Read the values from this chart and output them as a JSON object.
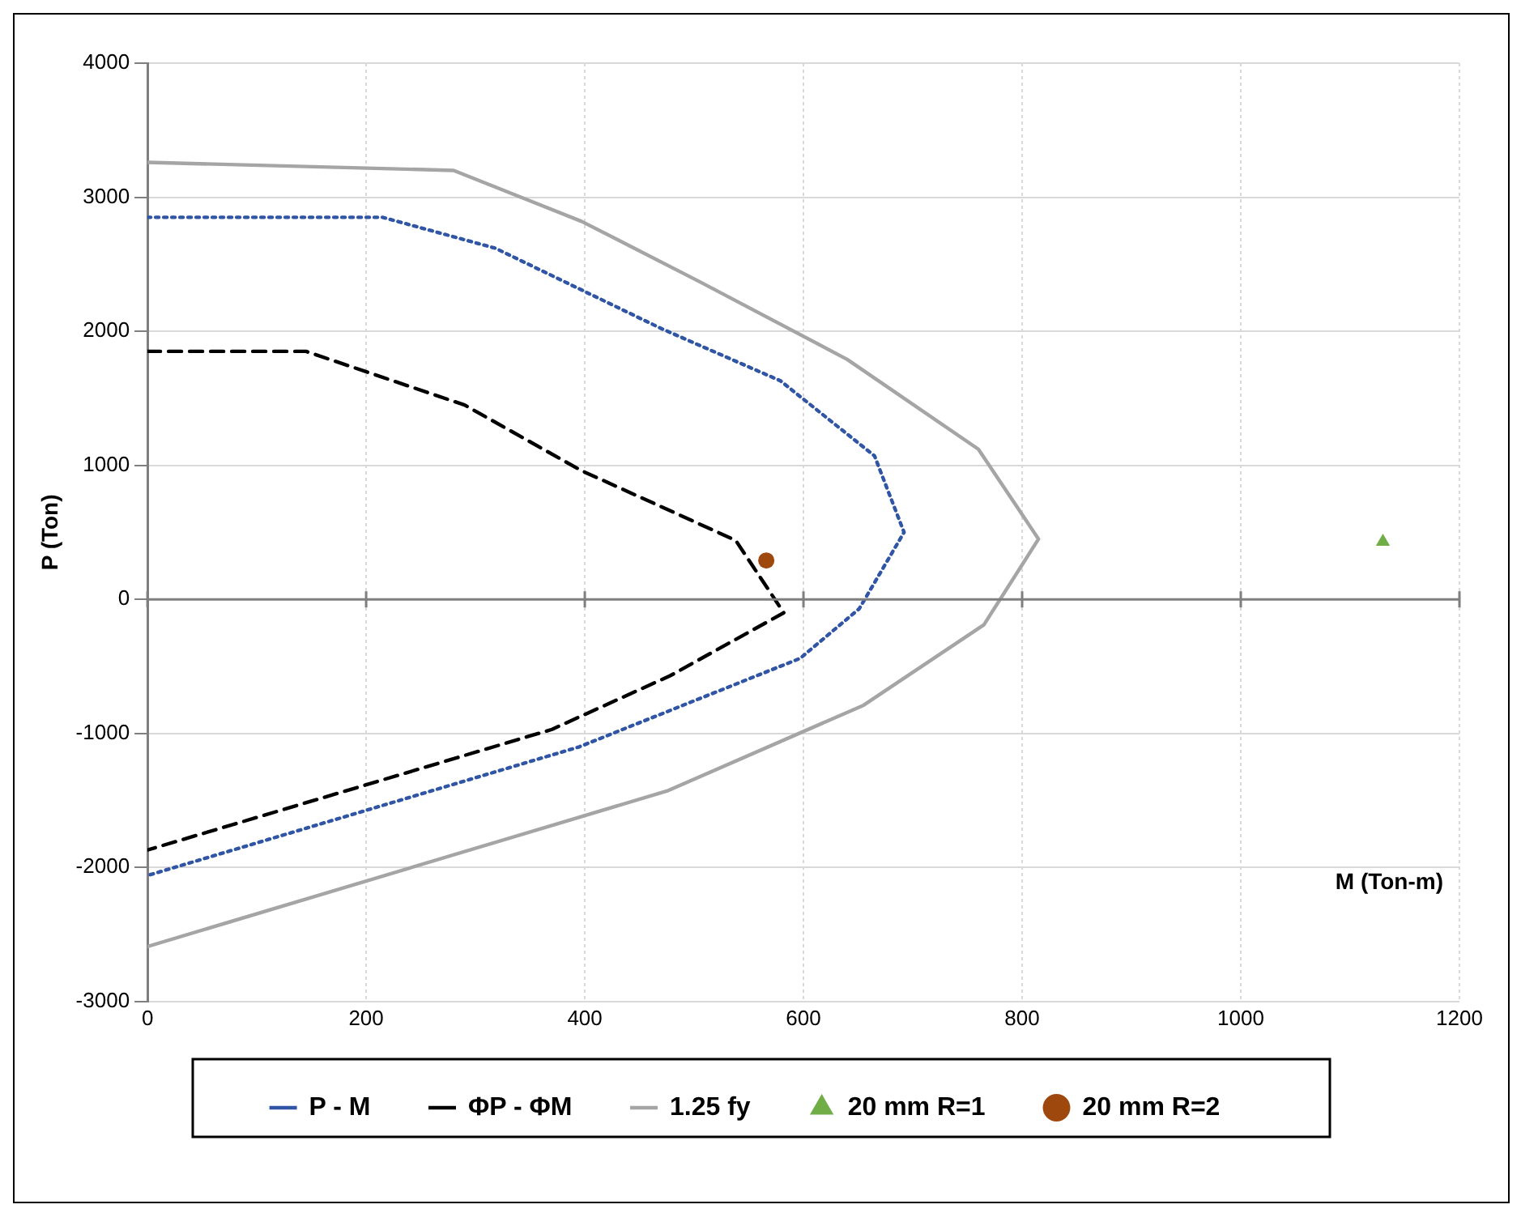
{
  "chart_data": {
    "type": "line",
    "xlabel": "M (Ton-m)",
    "ylabel": "P (Ton)",
    "xlim": [
      0,
      1200
    ],
    "xticks": [
      0,
      200,
      400,
      600,
      800,
      1000,
      1200
    ],
    "ylim": [
      -3000,
      4000
    ],
    "yticks": [
      -3000,
      -2000,
      -1000,
      0,
      1000,
      2000,
      3000,
      4000
    ],
    "grid": true,
    "legend": "bottom",
    "series": [
      {
        "name": "P - M",
        "type": "line",
        "color": "#2f55a4",
        "line_style": "dotted",
        "marker": "none",
        "x": [
          0,
          215,
          318,
          470,
          579,
          665,
          692,
          651,
          597,
          395,
          0
        ],
        "values": [
          2850,
          2850,
          2620,
          2020,
          1630,
          1070,
          500,
          -70,
          -440,
          -1100,
          -2060
        ]
      },
      {
        "name": "ΦP - ΦM",
        "type": "line",
        "color": "#000000",
        "line_style": "dashed",
        "marker": "none",
        "x": [
          0,
          145,
          290,
          397,
          538,
          582,
          478,
          370,
          0
        ],
        "values": [
          1850,
          1850,
          1450,
          960,
          440,
          -100,
          -570,
          -970,
          -1870
        ]
      },
      {
        "name": "1.25 fy",
        "type": "line",
        "color": "#a5a5a5",
        "line_style": "solid",
        "marker": "none",
        "x": [
          0,
          280,
          397,
          505,
          640,
          760,
          815,
          765,
          655,
          475,
          0
        ],
        "values": [
          3260,
          3200,
          2820,
          2370,
          1790,
          1120,
          450,
          -190,
          -790,
          -1430,
          -2590
        ]
      },
      {
        "name": "20 mm R=1",
        "type": "scatter",
        "color": "#70ad47",
        "marker": "triangle",
        "x": [
          1130
        ],
        "values": [
          430
        ]
      },
      {
        "name": "20 mm R=2",
        "type": "scatter",
        "color": "#9e480e",
        "marker": "circle",
        "x": [
          566
        ],
        "values": [
          290
        ]
      }
    ]
  }
}
